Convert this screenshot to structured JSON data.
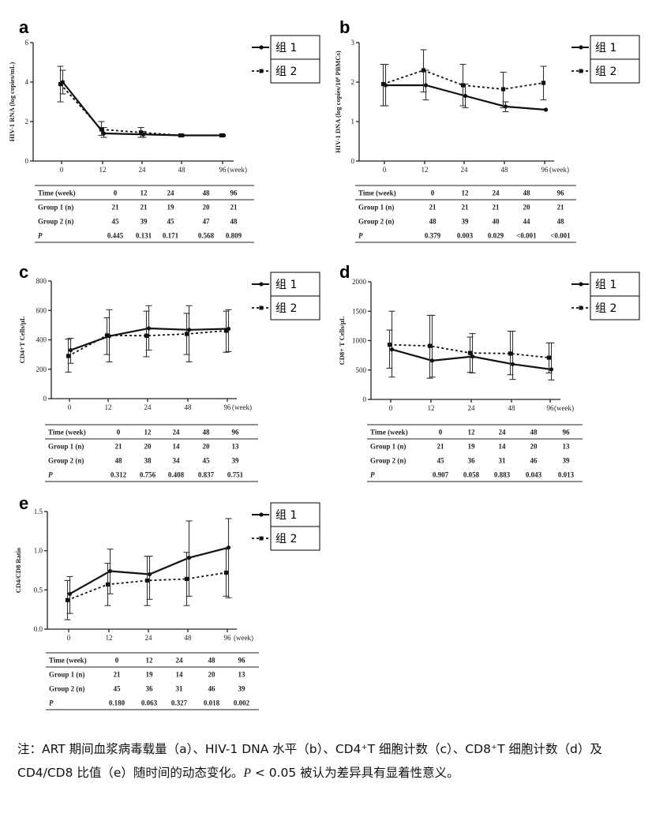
{
  "legend": [
    "组 1",
    "组 2"
  ],
  "note": {
    "before_p": "注：ART 期间血浆病毒载量（a）、HIV-1 DNA 水平（b）、CD4⁺T 细胞计数（c）、CD8⁺T 细胞计数（d）及 CD4/CD8 比值（e）随时间的动态变化。",
    "p_symbol": "P",
    "after_p": " < 0.05 被认为差异具有显着性意义。"
  },
  "chart_data": [
    {
      "panel": "a",
      "type": "line",
      "ylabel": "HIV-1 RNA (log copies/mL)",
      "ylim": [
        0,
        6
      ],
      "yticks": [
        "0",
        "2",
        "4",
        "6"
      ],
      "categories": [
        "0",
        "12",
        "24",
        "48",
        "96"
      ],
      "x_unit": "(week)",
      "series": [
        {
          "name": "组 1",
          "values": [
            4.0,
            1.4,
            1.35,
            1.3,
            1.3
          ],
          "err": [
            [
              3.4,
              4.6
            ],
            [
              1.2,
              1.7
            ],
            [
              1.2,
              1.5
            ],
            [
              1.3,
              1.3
            ],
            [
              1.3,
              1.3
            ]
          ]
        },
        {
          "name": "组 2",
          "values": [
            3.9,
            1.6,
            1.45,
            1.3,
            1.3
          ],
          "err": [
            [
              3.0,
              4.8
            ],
            [
              1.3,
              2.0
            ],
            [
              1.2,
              1.7
            ],
            [
              1.3,
              1.3
            ],
            [
              1.3,
              1.3
            ]
          ]
        }
      ],
      "table": {
        "header": [
          "Time (week)",
          "0",
          "12",
          "24",
          "48",
          "96"
        ],
        "rows": [
          [
            "Group 1 (n)",
            "21",
            "21",
            "19",
            "20",
            "21"
          ],
          [
            "Group 2 (n)",
            "45",
            "39",
            "45",
            "47",
            "48"
          ],
          [
            "P",
            "0.445",
            "0.131",
            "0.171",
            "0.568",
            "0.809"
          ]
        ]
      }
    },
    {
      "panel": "b",
      "type": "line",
      "ylabel": "HIV-1 DNA (log copies/10⁶ PBMCs)",
      "ylim": [
        0,
        3
      ],
      "yticks": [
        "0",
        "1",
        "2",
        "3"
      ],
      "categories": [
        "0",
        "12",
        "24",
        "48",
        "96"
      ],
      "x_unit": "(week)",
      "series": [
        {
          "name": "组 1",
          "values": [
            1.92,
            1.92,
            1.65,
            1.38,
            1.3
          ],
          "err": [
            [
              1.4,
              2.45
            ],
            [
              1.55,
              2.3
            ],
            [
              1.35,
              1.95
            ],
            [
              1.25,
              1.5
            ],
            [
              1.3,
              1.3
            ]
          ]
        },
        {
          "name": "组 2",
          "values": [
            1.95,
            2.3,
            1.92,
            1.82,
            1.98
          ],
          "err": [
            [
              1.4,
              2.45
            ],
            [
              1.75,
              2.82
            ],
            [
              1.4,
              2.45
            ],
            [
              1.35,
              2.25
            ],
            [
              1.55,
              2.4
            ]
          ]
        }
      ],
      "table": {
        "header": [
          "Time (week)",
          "0",
          "12",
          "24",
          "48",
          "96"
        ],
        "rows": [
          [
            "Group 1 (n)",
            "21",
            "21",
            "21",
            "20",
            "21"
          ],
          [
            "Group 2 (n)",
            "48",
            "39",
            "40",
            "44",
            "48"
          ],
          [
            "P",
            "0.379",
            "0.003",
            "0.029",
            "<0.001",
            "<0.001"
          ]
        ]
      }
    },
    {
      "panel": "c",
      "type": "line",
      "ylabel": "CD4+T Cells/μL",
      "ylim": [
        0,
        800
      ],
      "yticks": [
        "0",
        "200",
        "400",
        "600",
        "800"
      ],
      "categories": [
        "0",
        "12",
        "24",
        "48",
        "96"
      ],
      "x_unit": "(week)",
      "series": [
        {
          "name": "组 1",
          "values": [
            330,
            425,
            478,
            468,
            475
          ],
          "err": [
            [
              240,
              410
            ],
            [
              250,
              605
            ],
            [
              330,
              632
            ],
            [
              250,
              632
            ],
            [
              320,
              605
            ]
          ]
        },
        {
          "name": "组 2",
          "values": [
            290,
            430,
            428,
            440,
            462
          ],
          "err": [
            [
              180,
              405
            ],
            [
              300,
              550
            ],
            [
              285,
              595
            ],
            [
              300,
              580
            ],
            [
              315,
              595
            ]
          ]
        }
      ],
      "table": {
        "header": [
          "Time (week)",
          "0",
          "12",
          "24",
          "48",
          "96"
        ],
        "rows": [
          [
            "Group 1 (n)",
            "21",
            "20",
            "14",
            "20",
            "13"
          ],
          [
            "Group 2 (n)",
            "48",
            "38",
            "34",
            "45",
            "39"
          ],
          [
            "P",
            "0.312",
            "0.756",
            "0.408",
            "0.837",
            "0.751"
          ]
        ]
      }
    },
    {
      "panel": "d",
      "type": "line",
      "ylabel": "CD8+ T Cells/μL",
      "ylim": [
        0,
        2000
      ],
      "yticks": [
        "0",
        "500",
        "1000",
        "1500",
        "2000"
      ],
      "categories": [
        "0",
        "12",
        "24",
        "48",
        "96"
      ],
      "x_unit": "(week)",
      "series": [
        {
          "name": "组 1",
          "values": [
            850,
            660,
            730,
            600,
            510
          ],
          "err": [
            [
              380,
              1500
            ],
            [
              380,
              1430
            ],
            [
              450,
              1120
            ],
            [
              340,
              1160
            ],
            [
              330,
              960
            ]
          ]
        },
        {
          "name": "组 2",
          "values": [
            930,
            910,
            790,
            780,
            710
          ],
          "err": [
            [
              530,
              1180
            ],
            [
              360,
              1430
            ],
            [
              460,
              1060
            ],
            [
              420,
              1160
            ],
            [
              450,
              960
            ]
          ]
        }
      ],
      "table": {
        "header": [
          "Time (week)",
          "0",
          "12",
          "24",
          "48",
          "96"
        ],
        "rows": [
          [
            "Group 1 (n)",
            "21",
            "19",
            "14",
            "20",
            "13"
          ],
          [
            "Group 2 (n)",
            "45",
            "36",
            "31",
            "46",
            "39"
          ],
          [
            "P",
            "0.907",
            "0.058",
            "0.883",
            "0.043",
            "0.013"
          ]
        ]
      }
    },
    {
      "panel": "e",
      "type": "line",
      "ylabel": "CD4/CD8 Ratio",
      "ylim": [
        0,
        1.5
      ],
      "yticks": [
        "0.0",
        "0.5",
        "1.0",
        "1.5"
      ],
      "categories": [
        "0",
        "12",
        "24",
        "48",
        "96"
      ],
      "x_unit": "(week)",
      "series": [
        {
          "name": "组 1",
          "values": [
            0.45,
            0.74,
            0.7,
            0.91,
            1.04
          ],
          "err": [
            [
              0.2,
              0.67
            ],
            [
              0.45,
              1.02
            ],
            [
              0.38,
              0.93
            ],
            [
              0.42,
              1.38
            ],
            [
              0.4,
              1.41
            ]
          ]
        },
        {
          "name": "组 2",
          "values": [
            0.37,
            0.57,
            0.62,
            0.64,
            0.72
          ],
          "err": [
            [
              0.12,
              0.62
            ],
            [
              0.3,
              0.84
            ],
            [
              0.3,
              0.93
            ],
            [
              0.3,
              0.98
            ],
            [
              0.42,
              1.02
            ]
          ]
        }
      ],
      "table": {
        "header": [
          "Time (week)",
          "0",
          "12",
          "24",
          "48",
          "96"
        ],
        "rows": [
          [
            "Group 1 (n)",
            "21",
            "19",
            "14",
            "20",
            "13"
          ],
          [
            "Group 2 (n)",
            "45",
            "36",
            "31",
            "46",
            "39"
          ],
          [
            "P",
            "0.180",
            "0.063",
            "0.327",
            "0.018",
            "0.002"
          ]
        ]
      }
    }
  ]
}
